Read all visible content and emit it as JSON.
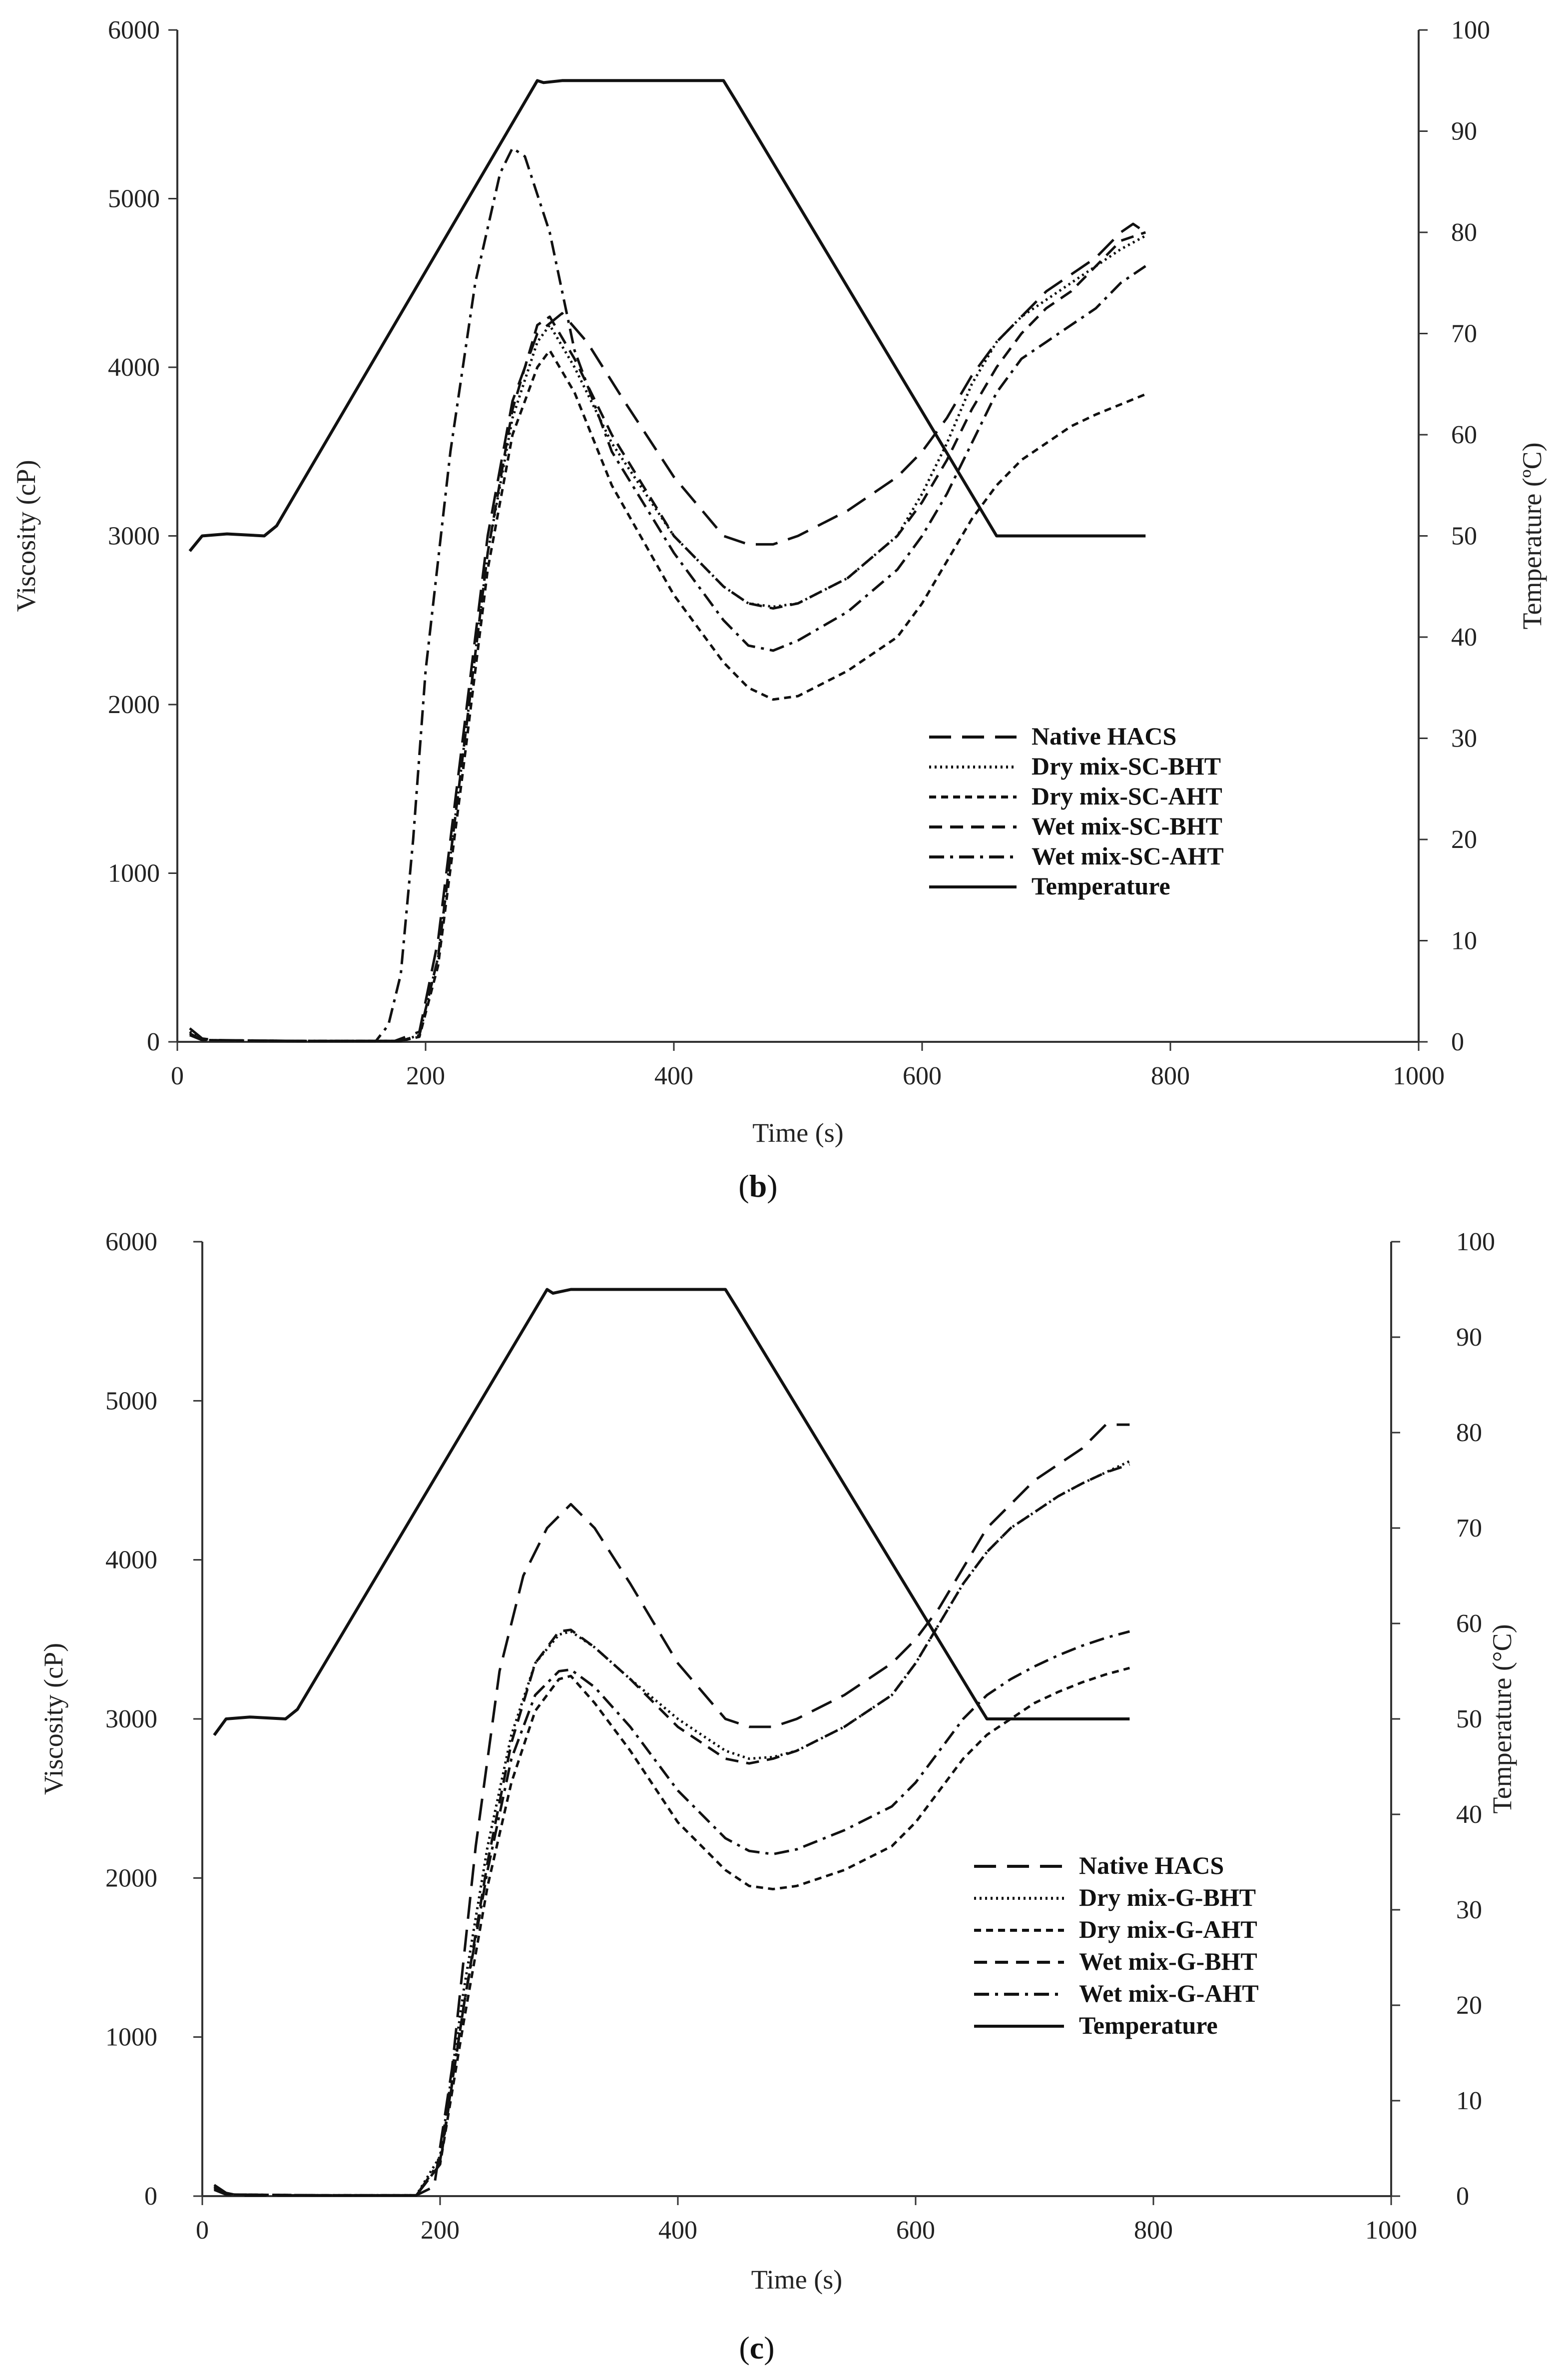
{
  "chart_data": [
    {
      "type": "line",
      "panel_label_open": "(",
      "panel_label_letter": "b",
      "panel_label_close": ")",
      "xlabel": "Time  (s)",
      "ylabel": "Viscosity  (cP)",
      "y2label": "Temperature  (ºC)",
      "xlim": [
        0,
        1000
      ],
      "ylim": [
        0,
        6000
      ],
      "y2lim": [
        0,
        100
      ],
      "x_ticks": [
        "0",
        "200",
        "400",
        "600",
        "800",
        "1000"
      ],
      "y_ticks": [
        "0",
        "1000",
        "2000",
        "3000",
        "4000",
        "5000",
        "6000"
      ],
      "y2_ticks": [
        "0",
        "10",
        "20",
        "30",
        "40",
        "50",
        "60",
        "70",
        "80",
        "90",
        "100"
      ],
      "legend_position": "center-right",
      "series": [
        {
          "name": "Native HACS",
          "dash": "long-dash",
          "axis": "left",
          "x": [
            10,
            20,
            30,
            100,
            175,
            195,
            210,
            230,
            250,
            270,
            290,
            310,
            330,
            360,
            400,
            440,
            460,
            480,
            500,
            540,
            580,
            600,
            620,
            640,
            660,
            680,
            700,
            720,
            740,
            760,
            770,
            780
          ],
          "y": [
            80,
            20,
            10,
            5,
            5,
            60,
            600,
            1800,
            3000,
            3800,
            4200,
            4320,
            4150,
            3800,
            3350,
            3000,
            2950,
            2950,
            3000,
            3150,
            3350,
            3500,
            3700,
            3950,
            4150,
            4300,
            4450,
            4550,
            4650,
            4800,
            4850,
            4800
          ]
        },
        {
          "name": "Dry mix-SC-BHT",
          "dash": "dotted",
          "axis": "left",
          "x": [
            10,
            20,
            100,
            180,
            195,
            210,
            230,
            250,
            270,
            290,
            300,
            320,
            350,
            400,
            440,
            460,
            480,
            500,
            540,
            580,
            600,
            620,
            640,
            660,
            680,
            700,
            720,
            740,
            760,
            780
          ],
          "y": [
            60,
            10,
            5,
            5,
            40,
            500,
            1700,
            2900,
            3700,
            4150,
            4250,
            4000,
            3550,
            3000,
            2700,
            2600,
            2580,
            2600,
            2750,
            3000,
            3250,
            3550,
            3900,
            4150,
            4300,
            4400,
            4500,
            4600,
            4700,
            4780
          ]
        },
        {
          "name": "Dry mix-SC-AHT",
          "dash": "short-dash",
          "axis": "left",
          "x": [
            10,
            20,
            100,
            180,
            195,
            210,
            230,
            250,
            270,
            290,
            300,
            320,
            350,
            400,
            440,
            460,
            480,
            500,
            540,
            580,
            600,
            620,
            640,
            660,
            680,
            700,
            720,
            740,
            760,
            780
          ],
          "y": [
            50,
            10,
            5,
            5,
            30,
            450,
            1600,
            2800,
            3600,
            4000,
            4100,
            3850,
            3300,
            2650,
            2250,
            2100,
            2030,
            2050,
            2200,
            2400,
            2600,
            2850,
            3100,
            3300,
            3450,
            3550,
            3650,
            3720,
            3780,
            3840
          ]
        },
        {
          "name": "Wet mix-SC-BHT",
          "dash": "medium-dash",
          "axis": "left",
          "x": [
            10,
            20,
            100,
            180,
            195,
            210,
            230,
            250,
            270,
            290,
            300,
            320,
            350,
            400,
            440,
            460,
            480,
            500,
            540,
            580,
            600,
            620,
            640,
            660,
            680,
            700,
            720,
            740,
            760,
            780
          ],
          "y": [
            50,
            10,
            5,
            5,
            40,
            500,
            1700,
            2900,
            3750,
            4250,
            4300,
            4050,
            3600,
            3000,
            2700,
            2600,
            2570,
            2600,
            2750,
            3000,
            3200,
            3450,
            3750,
            4000,
            4200,
            4350,
            4450,
            4600,
            4750,
            4800
          ]
        },
        {
          "name": "Wet mix-SC-AHT",
          "dash": "dash-dot",
          "axis": "left",
          "x": [
            10,
            20,
            100,
            160,
            170,
            180,
            190,
            200,
            220,
            240,
            260,
            270,
            280,
            300,
            320,
            350,
            400,
            440,
            460,
            480,
            500,
            540,
            580,
            600,
            620,
            640,
            660,
            680,
            700,
            720,
            740,
            760,
            780
          ],
          "y": [
            40,
            10,
            5,
            5,
            100,
            400,
            1200,
            2200,
            3500,
            4500,
            5150,
            5300,
            5250,
            4800,
            4100,
            3500,
            2900,
            2500,
            2350,
            2320,
            2380,
            2550,
            2800,
            3000,
            3250,
            3550,
            3850,
            4050,
            4150,
            4250,
            4350,
            4500,
            4600
          ]
        },
        {
          "name": "Temperature",
          "dash": "solid",
          "axis": "right",
          "x": [
            10,
            20,
            40,
            70,
            80,
            290,
            295,
            310,
            350,
            400,
            440,
            450,
            660,
            700,
            780
          ],
          "y": [
            48.5,
            50,
            50.2,
            50,
            51,
            95,
            94.8,
            95,
            95,
            95,
            95,
            93,
            50,
            50,
            50
          ]
        }
      ]
    },
    {
      "type": "line",
      "panel_label_open": "(",
      "panel_label_letter": "c",
      "panel_label_close": ")",
      "xlabel": "Time (s)",
      "ylabel": "Viscosity (cP)",
      "y2label": "Temperature (°C)",
      "xlim": [
        0,
        1000
      ],
      "ylim": [
        0,
        6000
      ],
      "y2lim": [
        0,
        100
      ],
      "x_ticks": [
        "0",
        "200",
        "400",
        "600",
        "800",
        "1000"
      ],
      "y_ticks": [
        "0",
        "1000",
        "2000",
        "3000",
        "4000",
        "5000",
        "6000"
      ],
      "y2_ticks": [
        "0",
        "10",
        "20",
        "30",
        "40",
        "50",
        "60",
        "70",
        "80",
        "90",
        "100"
      ],
      "legend_position": "center-right",
      "series": [
        {
          "name": "Native HACS",
          "dash": "long-dash",
          "axis": "left",
          "x": [
            10,
            20,
            30,
            100,
            180,
            195,
            210,
            230,
            250,
            270,
            290,
            310,
            330,
            360,
            400,
            440,
            460,
            480,
            500,
            540,
            580,
            600,
            620,
            640,
            660,
            680,
            700,
            720,
            740,
            760,
            770,
            780
          ],
          "y": [
            70,
            20,
            5,
            5,
            5,
            60,
            800,
            2200,
            3300,
            3900,
            4200,
            4350,
            4200,
            3850,
            3350,
            3000,
            2950,
            2950,
            3000,
            3150,
            3350,
            3500,
            3700,
            3950,
            4200,
            4350,
            4500,
            4600,
            4700,
            4850,
            4850,
            4850
          ]
        },
        {
          "name": "Dry mix-G-BHT",
          "dash": "dotted",
          "axis": "left",
          "x": [
            10,
            20,
            100,
            180,
            200,
            220,
            240,
            260,
            280,
            300,
            310,
            330,
            360,
            400,
            440,
            460,
            480,
            500,
            540,
            580,
            600,
            620,
            640,
            660,
            680,
            700,
            720,
            740,
            760,
            780
          ],
          "y": [
            60,
            10,
            5,
            5,
            250,
            1300,
            2200,
            2900,
            3350,
            3530,
            3550,
            3450,
            3250,
            3000,
            2800,
            2750,
            2760,
            2800,
            2950,
            3150,
            3350,
            3600,
            3850,
            4050,
            4200,
            4300,
            4400,
            4480,
            4550,
            4620
          ]
        },
        {
          "name": "Dry mix-G-AHT",
          "dash": "short-dash",
          "axis": "left",
          "x": [
            10,
            20,
            100,
            180,
            200,
            220,
            240,
            260,
            280,
            300,
            310,
            330,
            360,
            400,
            440,
            460,
            480,
            500,
            540,
            580,
            600,
            620,
            640,
            660,
            680,
            700,
            720,
            740,
            760,
            780
          ],
          "y": [
            50,
            10,
            5,
            5,
            200,
            1100,
            1950,
            2600,
            3050,
            3250,
            3270,
            3100,
            2800,
            2350,
            2050,
            1950,
            1930,
            1950,
            2050,
            2200,
            2350,
            2550,
            2750,
            2900,
            3000,
            3100,
            3170,
            3230,
            3280,
            3320
          ]
        },
        {
          "name": "Wet mix-G-BHT",
          "dash": "medium-dash",
          "axis": "left",
          "x": [
            10,
            20,
            100,
            180,
            200,
            220,
            240,
            260,
            280,
            300,
            310,
            330,
            360,
            400,
            440,
            460,
            480,
            500,
            540,
            580,
            600,
            620,
            640,
            660,
            680,
            700,
            720,
            740,
            760,
            780
          ],
          "y": [
            50,
            10,
            5,
            5,
            200,
            1200,
            2100,
            2850,
            3350,
            3550,
            3560,
            3450,
            3250,
            2950,
            2750,
            2720,
            2750,
            2800,
            2950,
            3150,
            3350,
            3600,
            3850,
            4050,
            4200,
            4300,
            4400,
            4480,
            4550,
            4600
          ]
        },
        {
          "name": "Wet mix-G-AHT",
          "dash": "dash-dot",
          "axis": "left",
          "x": [
            10,
            20,
            100,
            180,
            200,
            220,
            240,
            260,
            280,
            300,
            310,
            330,
            360,
            400,
            440,
            460,
            480,
            500,
            540,
            580,
            600,
            620,
            640,
            660,
            680,
            700,
            720,
            740,
            760,
            780
          ],
          "y": [
            40,
            10,
            5,
            5,
            220,
            1200,
            2050,
            2750,
            3150,
            3300,
            3310,
            3200,
            2950,
            2550,
            2250,
            2170,
            2150,
            2180,
            2300,
            2450,
            2600,
            2800,
            3000,
            3150,
            3250,
            3330,
            3400,
            3460,
            3510,
            3550
          ]
        },
        {
          "name": "Temperature",
          "dash": "solid",
          "axis": "right",
          "x": [
            10,
            20,
            40,
            70,
            80,
            290,
            295,
            310,
            350,
            400,
            440,
            450,
            650,
            660,
            700,
            780
          ],
          "y": [
            48.3,
            50,
            50.2,
            50,
            51,
            95,
            94.6,
            95,
            95,
            95,
            95,
            93,
            52,
            50,
            50,
            50
          ]
        }
      ]
    }
  ]
}
